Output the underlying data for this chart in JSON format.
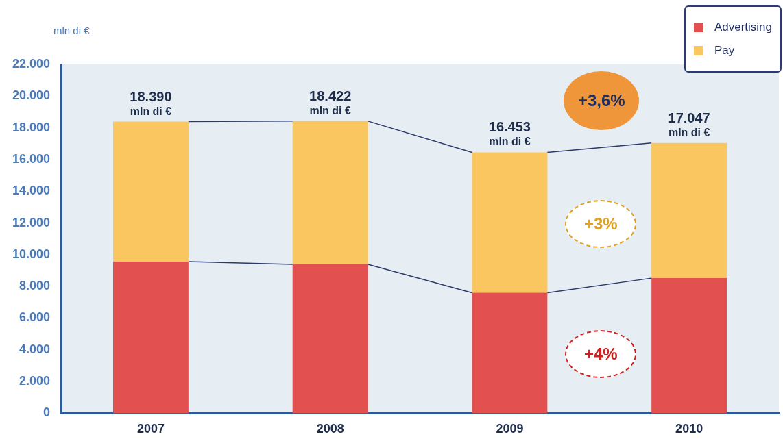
{
  "chart_data": {
    "type": "bar",
    "stacked": true,
    "ylabel": "mln di €",
    "categories": [
      "2007",
      "2008",
      "2009",
      "2010"
    ],
    "series": [
      {
        "name": "Advertising",
        "color": "#e35050",
        "values": [
          9560,
          9390,
          7600,
          8520
        ]
      },
      {
        "name": "Pay",
        "color": "#f9c660",
        "values": [
          8830,
          9032,
          8853,
          8527
        ]
      }
    ],
    "totals": [
      "18.390 mln di €",
      "18.422 mln di €",
      "16.453 mln di €",
      "17.047 mln di €"
    ],
    "annotations": [
      "+3,6%",
      "+3%",
      "+4%"
    ],
    "ylim": [
      0,
      22000
    ],
    "yticks": [
      {
        "value": 0,
        "label": "0"
      },
      {
        "value": 2000,
        "label": "2.000"
      },
      {
        "value": 4000,
        "label": "4.000"
      },
      {
        "value": 6000,
        "label": "6.000"
      },
      {
        "value": 8000,
        "label": "8.000"
      },
      {
        "value": 10000,
        "label": "10.000"
      },
      {
        "value": 12000,
        "label": "12.000"
      },
      {
        "value": 14000,
        "label": "14.000"
      },
      {
        "value": 16000,
        "label": "16.000"
      },
      {
        "value": 18000,
        "label": "18.000"
      },
      {
        "value": 20000,
        "label": "20.000"
      },
      {
        "value": 22000,
        "label": "22.000"
      }
    ],
    "grid": false,
    "legend": "top right"
  }
}
